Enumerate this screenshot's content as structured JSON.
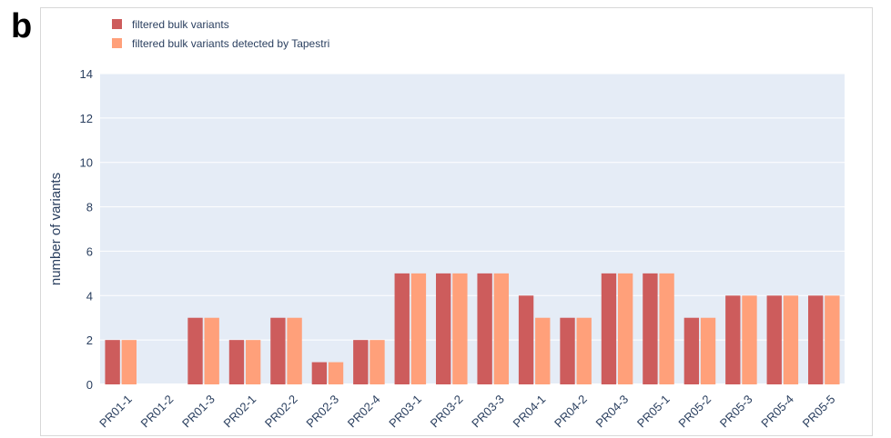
{
  "panel_label": "b",
  "chart_data": {
    "type": "bar",
    "title": "",
    "xlabel": "",
    "ylabel": "number of variants",
    "ylim": [
      0,
      14
    ],
    "yticks": [
      0,
      2,
      4,
      6,
      8,
      10,
      12,
      14
    ],
    "grid": true,
    "legend_position": "top-left",
    "plot_background": "#e5ecf6",
    "categories": [
      "PR01-1",
      "PR01-2",
      "PR01-3",
      "PR02-1",
      "PR02-2",
      "PR02-3",
      "PR02-4",
      "PR03-1",
      "PR03-2",
      "PR03-3",
      "PR04-1",
      "PR04-2",
      "PR04-3",
      "PR05-1",
      "PR05-2",
      "PR05-3",
      "PR05-4",
      "PR05-5"
    ],
    "series": [
      {
        "name": "filtered bulk variants",
        "color": "#cd5c5c",
        "values": [
          2,
          0,
          3,
          2,
          3,
          1,
          2,
          5,
          5,
          5,
          4,
          3,
          5,
          5,
          3,
          4,
          4,
          4
        ]
      },
      {
        "name": "filtered bulk variants detected by Tapestri",
        "color": "#ffa07a",
        "values": [
          2,
          0,
          3,
          2,
          3,
          1,
          2,
          5,
          5,
          5,
          3,
          3,
          5,
          5,
          3,
          4,
          4,
          4
        ]
      }
    ]
  }
}
